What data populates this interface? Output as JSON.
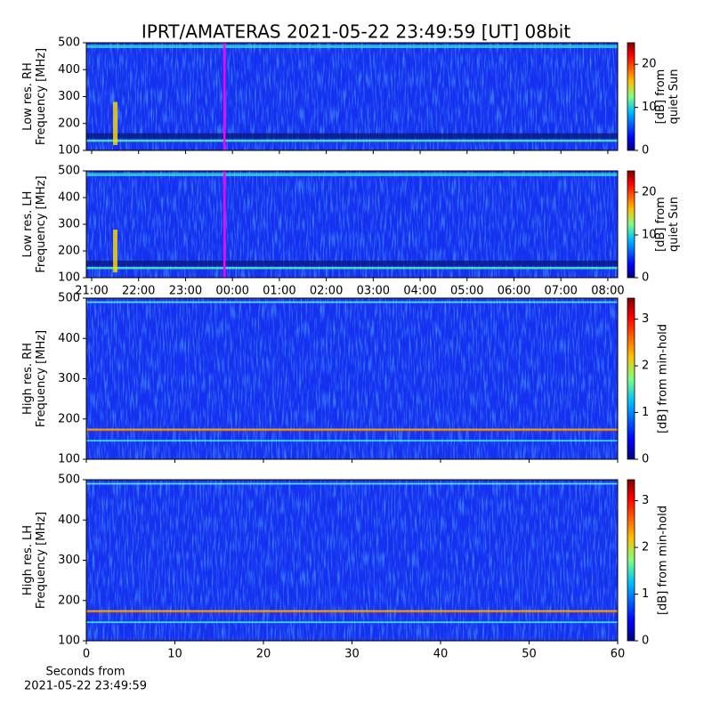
{
  "chart_data": [
    {
      "type": "heatmap",
      "title": "IPRT/AMATERAS 2021-05-22 23:49:59 [UT]   08bit",
      "ylabel": [
        "Low res. RH",
        "Frequency [MHz]"
      ],
      "xlim": [
        20.886,
        32.21
      ],
      "xticks": [
        21,
        22,
        23,
        24,
        25,
        26,
        27,
        28,
        29,
        30,
        31,
        32
      ],
      "ylim": [
        100,
        500
      ],
      "yticks": [
        100,
        200,
        300,
        400,
        500
      ],
      "marker": {
        "x": 23.83,
        "color": "#ff00ff"
      },
      "colorbar": {
        "label": [
          "[dB] from",
          "quiet Sun"
        ],
        "lim": [
          0,
          25
        ],
        "ticks": [
          0,
          10,
          20
        ]
      }
    },
    {
      "type": "heatmap",
      "ylabel": [
        "Low res. LH",
        "Frequency [MHz]"
      ],
      "xlim": [
        20.886,
        32.21
      ],
      "xticks": [
        {
          "value": 21,
          "label": "21:00"
        },
        {
          "value": 22,
          "label": "22:00"
        },
        {
          "value": 23,
          "label": "23:00"
        },
        {
          "value": 24,
          "label": "00:00"
        },
        {
          "value": 25,
          "label": "01:00"
        },
        {
          "value": 26,
          "label": "02:00"
        },
        {
          "value": 27,
          "label": "03:00"
        },
        {
          "value": 28,
          "label": "04:00"
        },
        {
          "value": 29,
          "label": "05:00"
        },
        {
          "value": 30,
          "label": "06:00"
        },
        {
          "value": 31,
          "label": "07:00"
        },
        {
          "value": 32,
          "label": "08:00"
        }
      ],
      "ylim": [
        100,
        500
      ],
      "yticks": [
        100,
        200,
        300,
        400,
        500
      ],
      "marker": {
        "x": 23.83,
        "color": "#ff00ff"
      },
      "colorbar": {
        "label": [
          "[dB] from",
          "quiet Sun"
        ],
        "lim": [
          0,
          25
        ],
        "ticks": [
          0,
          10,
          20
        ]
      }
    },
    {
      "type": "heatmap",
      "ylabel": [
        "High res. RH",
        "Frequency [MHz]"
      ],
      "xlim": [
        0,
        60
      ],
      "xticks": [
        0,
        10,
        20,
        30,
        40,
        50,
        60
      ],
      "ylim": [
        100,
        500
      ],
      "yticks": [
        100,
        200,
        300,
        400,
        500
      ],
      "colorbar": {
        "label": [
          "[dB] from min-hold"
        ],
        "lim": [
          0,
          3.45
        ],
        "ticks": [
          0,
          1,
          2,
          3
        ]
      }
    },
    {
      "type": "heatmap",
      "ylabel": [
        "High res. LH",
        "Frequency [MHz]"
      ],
      "xlabel": [
        "Seconds from",
        "2021-05-22 23:49:59"
      ],
      "xlim": [
        0,
        60
      ],
      "xticks": [
        0,
        10,
        20,
        30,
        40,
        50,
        60
      ],
      "ylim": [
        100,
        500
      ],
      "yticks": [
        100,
        200,
        300,
        400,
        500
      ],
      "colorbar": {
        "label": [
          "[dB] from min-hold"
        ],
        "lim": [
          0,
          3.45
        ],
        "ticks": [
          0,
          1,
          2,
          3
        ]
      }
    }
  ]
}
